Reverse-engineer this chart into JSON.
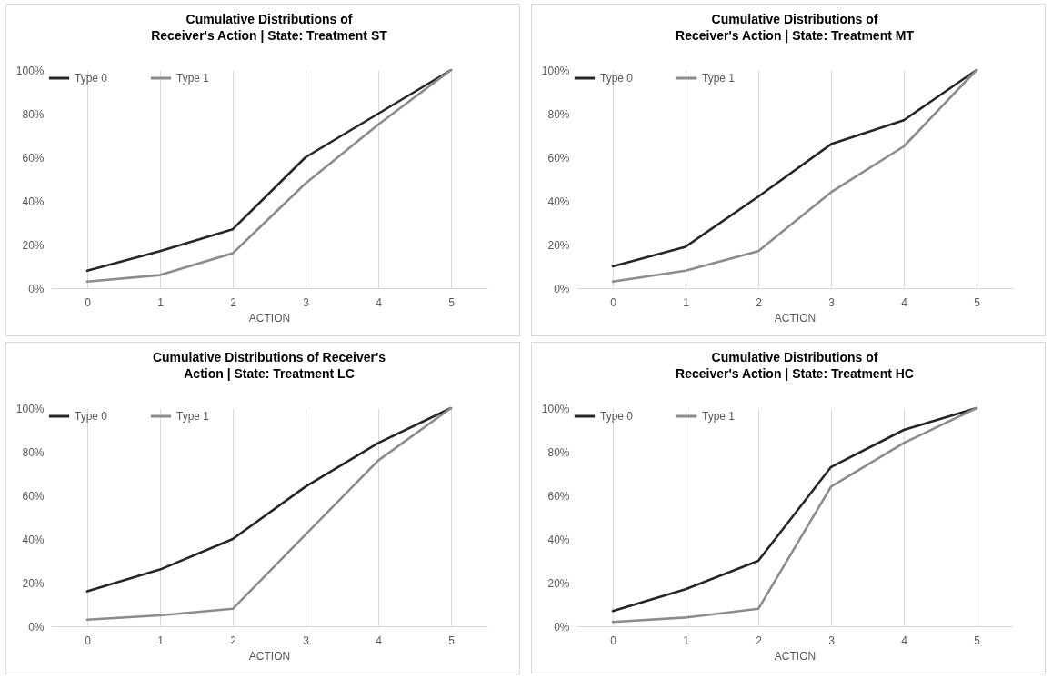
{
  "chart_data": [
    {
      "type": "line",
      "title": "Cumulative Distributions of\nReceiver's Action | State: Treatment ST",
      "xlabel": "ACTION",
      "categories": [
        "0",
        "1",
        "2",
        "3",
        "4",
        "5"
      ],
      "series": [
        {
          "name": "Type 0",
          "color": "#262626",
          "values": [
            8,
            17,
            27,
            60,
            80,
            100
          ]
        },
        {
          "name": "Type 1",
          "color": "#8c8c8c",
          "values": [
            3,
            6,
            16,
            48,
            75,
            100
          ]
        }
      ],
      "ylim": [
        0,
        100
      ],
      "yticks": [
        {
          "value": 0,
          "label": "0%"
        },
        {
          "value": 20,
          "label": "20%"
        },
        {
          "value": 40,
          "label": "40%"
        },
        {
          "value": 60,
          "label": "60%"
        },
        {
          "value": 80,
          "label": "80%"
        },
        {
          "value": 100,
          "label": "100%"
        }
      ],
      "grid": "x",
      "legend": "top left",
      "line_style": "solid"
    },
    {
      "type": "line",
      "title": "Cumulative Distributions of\nReceiver's Action | State: Treatment MT",
      "xlabel": "ACTION",
      "categories": [
        "0",
        "1",
        "2",
        "3",
        "4",
        "5"
      ],
      "series": [
        {
          "name": "Type 0",
          "color": "#262626",
          "values": [
            10,
            19,
            42,
            66,
            77,
            100
          ]
        },
        {
          "name": "Type 1",
          "color": "#8c8c8c",
          "values": [
            3,
            8,
            17,
            44,
            65,
            100
          ]
        }
      ],
      "ylim": [
        0,
        100
      ],
      "yticks": [
        {
          "value": 0,
          "label": "0%"
        },
        {
          "value": 20,
          "label": "20%"
        },
        {
          "value": 40,
          "label": "40%"
        },
        {
          "value": 60,
          "label": "60%"
        },
        {
          "value": 80,
          "label": "80%"
        },
        {
          "value": 100,
          "label": "100%"
        }
      ],
      "grid": "x",
      "legend": "top left",
      "line_style": "solid"
    },
    {
      "type": "line",
      "title": "Cumulative Distributions of  Receiver's\nAction | State: Treatment LC",
      "xlabel": "ACTION",
      "categories": [
        "0",
        "1",
        "2",
        "3",
        "4",
        "5"
      ],
      "series": [
        {
          "name": "Type 0",
          "color": "#262626",
          "values": [
            16,
            26,
            40,
            64,
            84,
            100
          ]
        },
        {
          "name": "Type 1",
          "color": "#8c8c8c",
          "values": [
            3,
            5,
            8,
            42,
            76,
            100
          ]
        }
      ],
      "ylim": [
        0,
        100
      ],
      "yticks": [
        {
          "value": 0,
          "label": "0%"
        },
        {
          "value": 20,
          "label": "20%"
        },
        {
          "value": 40,
          "label": "40%"
        },
        {
          "value": 60,
          "label": "60%"
        },
        {
          "value": 80,
          "label": "80%"
        },
        {
          "value": 100,
          "label": "100%"
        }
      ],
      "grid": "x",
      "legend": "top left",
      "line_style": "solid"
    },
    {
      "type": "line",
      "title": "Cumulative Distributions of\nReceiver's Action | State: Treatment HC",
      "xlabel": "ACTION",
      "categories": [
        "0",
        "1",
        "2",
        "3",
        "4",
        "5"
      ],
      "series": [
        {
          "name": "Type 0",
          "color": "#262626",
          "values": [
            7,
            17,
            30,
            73,
            90,
            100
          ]
        },
        {
          "name": "Type 1",
          "color": "#8c8c8c",
          "values": [
            2,
            4,
            8,
            64,
            84,
            100
          ]
        }
      ],
      "ylim": [
        0,
        100
      ],
      "yticks": [
        {
          "value": 0,
          "label": "0%"
        },
        {
          "value": 20,
          "label": "20%"
        },
        {
          "value": 40,
          "label": "40%"
        },
        {
          "value": 60,
          "label": "60%"
        },
        {
          "value": 80,
          "label": "80%"
        },
        {
          "value": 100,
          "label": "100%"
        }
      ],
      "grid": "x",
      "legend": "top left",
      "line_style": "solid"
    }
  ]
}
